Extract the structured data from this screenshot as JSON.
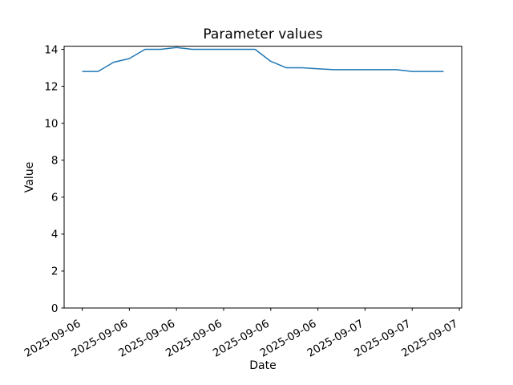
{
  "chart_data": {
    "type": "line",
    "title": "Parameter values",
    "xlabel": "Date",
    "ylabel": "Value",
    "background_color": "#ffffff",
    "axis_color": "#000000",
    "grid": false,
    "legend": "none",
    "xlim": [
      -1.15,
      24.15
    ],
    "ylim": [
      0,
      14.17
    ],
    "y_ticks": [
      0,
      2,
      4,
      6,
      8,
      10,
      12,
      14
    ],
    "x_ticks": {
      "hours": [
        0,
        3,
        6,
        9,
        12,
        15,
        18,
        21,
        24
      ],
      "labels": [
        "2025-09-06",
        "2025-09-06",
        "2025-09-06",
        "2025-09-06",
        "2025-09-06",
        "2025-09-06",
        "2025-09-07",
        "2025-09-07",
        "2025-09-07"
      ],
      "rotation_deg": 30
    },
    "series": [
      {
        "name": "Parameter",
        "color": "#1f77b4",
        "line_width": 1.5,
        "x_hours": [
          0,
          1,
          2,
          3,
          4,
          5,
          6,
          7,
          8,
          9,
          10,
          11,
          12,
          13,
          14,
          15,
          16,
          17,
          18,
          19,
          20,
          21,
          22,
          23
        ],
        "values": [
          12.8,
          12.8,
          13.3,
          13.5,
          14.0,
          14.0,
          14.1,
          14.0,
          14.0,
          14.0,
          14.0,
          14.0,
          13.35,
          13.0,
          13.0,
          12.95,
          12.9,
          12.9,
          12.9,
          12.9,
          12.9,
          12.8,
          12.8,
          12.8
        ]
      }
    ]
  }
}
